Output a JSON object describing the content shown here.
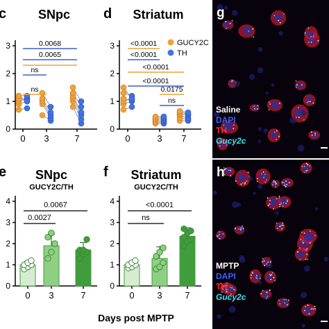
{
  "panels": {
    "c": "c",
    "d": "d",
    "e": "e",
    "f": "f",
    "g": "g",
    "h": "h"
  },
  "legend": {
    "gucy2c": "GUCY2C",
    "th": "TH"
  },
  "shared_xlabel": "Days post MPTP",
  "colors": {
    "gucy2c": "#f0a03c",
    "th": "#4472e0",
    "sig_orange": "#e8a33a",
    "sig_blue": "#3a5fc8",
    "bar_0": "#d6ecd0",
    "bar_3": "#8fcf84",
    "bar_7": "#3f9d3c",
    "dot_green": "#56b34d"
  },
  "micrographs": {
    "g": {
      "lines": [
        "Saline",
        "DAPI",
        "TH",
        "Gucy2c"
      ]
    },
    "h": {
      "lines": [
        "MPTP",
        "DAPI",
        "TH",
        "Gucy2c"
      ]
    }
  },
  "chart_data": [
    {
      "id": "c",
      "type": "scatter",
      "title": "SNpc",
      "subtitle": "",
      "x": [
        "0",
        "3",
        "7"
      ],
      "ylim": [
        0,
        3
      ],
      "yticks": [
        "0",
        "1",
        "2",
        "3"
      ],
      "series": [
        {
          "name": "GUCY2C",
          "values": [
            [
              0.7,
              0.9,
              1.0,
              1.1,
              1.2,
              1.2
            ],
            [
              0.5,
              0.9,
              1.0,
              1.1,
              1.3
            ],
            [
              0.8,
              1.0,
              1.1,
              1.2,
              1.3,
              1.5
            ]
          ]
        },
        {
          "name": "TH",
          "values": [
            [
              0.75,
              1.0,
              1.1,
              1.05,
              1.2,
              1.0
            ],
            [
              0.3,
              0.4,
              0.5,
              0.6,
              0.8
            ],
            [
              0.2,
              0.35,
              0.5,
              0.6,
              0.8,
              1.0
            ]
          ]
        }
      ],
      "significance": [
        {
          "from": 0,
          "to": 1,
          "y": 1.25,
          "label": "ns",
          "color": "orange"
        },
        {
          "from": 0,
          "to": 1,
          "y": 1.95,
          "label": "ns",
          "color": "blue"
        },
        {
          "from": 0,
          "to": 2,
          "y": 2.3,
          "label": "",
          "color": "orange"
        },
        {
          "from": 0,
          "to": 2,
          "y": 2.5,
          "label": "0.0065",
          "color": "blue"
        },
        {
          "from": 0,
          "to": 2,
          "y": 2.9,
          "label": "0.0068",
          "color": "blue"
        }
      ]
    },
    {
      "id": "d",
      "type": "scatter",
      "title": "Striatum",
      "subtitle": "",
      "x": [
        "0",
        "3",
        "7"
      ],
      "ylim": [
        0,
        3
      ],
      "yticks": [
        "0",
        "1",
        "2",
        "3"
      ],
      "series": [
        {
          "name": "GUCY2C",
          "values": [
            [
              0.7,
              0.9,
              1.0,
              1.1,
              1.3,
              1.5
            ],
            [
              0.2,
              0.25,
              0.3,
              0.35,
              0.4,
              0.45
            ],
            [
              0.3,
              0.4,
              0.5,
              0.55,
              0.6,
              0.65
            ]
          ]
        },
        {
          "name": "TH",
          "values": [
            [
              0.8,
              1.0,
              1.1,
              1.05,
              1.2,
              1.1
            ],
            [
              0.2,
              0.25,
              0.3,
              0.35,
              0.4,
              0.45
            ],
            [
              0.3,
              0.35,
              0.4,
              0.5,
              0.55,
              0.6
            ]
          ]
        }
      ],
      "significance": [
        {
          "from": 0,
          "to": 1,
          "y": 2.9,
          "label": "<0.0001",
          "color": "orange"
        },
        {
          "from": 0,
          "to": 1,
          "y": 2.5,
          "label": "<0.0001",
          "color": "blue"
        },
        {
          "from": 0,
          "to": 2,
          "y": 2.05,
          "label": "<0.0001",
          "color": "orange"
        },
        {
          "from": 0,
          "to": 2,
          "y": 1.55,
          "label": "<0.0001",
          "color": "blue"
        },
        {
          "from": 1,
          "to": 2,
          "y": 1.25,
          "label": "0.0175",
          "color": "orange"
        },
        {
          "from": 1,
          "to": 2,
          "y": 0.85,
          "label": "ns",
          "color": "blue"
        }
      ]
    },
    {
      "id": "e",
      "type": "bar",
      "title": "SNpc",
      "subtitle": "GUCY2C/TH",
      "categories": [
        "0",
        "3",
        "7"
      ],
      "values": [
        1.0,
        1.9,
        1.7
      ],
      "errors": [
        0.15,
        0.55,
        0.35
      ],
      "points": [
        [
          0.8,
          0.9,
          1.0,
          1.0,
          1.1,
          1.2
        ],
        [
          1.3,
          1.6,
          2.0,
          2.3,
          2.5
        ],
        [
          1.3,
          1.5,
          1.6,
          1.7,
          1.7,
          2.2
        ]
      ],
      "ylim": [
        0,
        4
      ],
      "yticks": [
        "0",
        "1",
        "2",
        "3",
        "4"
      ],
      "significance": [
        {
          "from": 0,
          "to": 1,
          "y": 2.95,
          "label": "0.0027"
        },
        {
          "from": 0,
          "to": 2,
          "y": 3.55,
          "label": "0.0067"
        }
      ]
    },
    {
      "id": "f",
      "type": "bar",
      "title": "Striatum",
      "subtitle": "GUCY2C/TH",
      "categories": [
        "0",
        "3",
        "7"
      ],
      "values": [
        1.0,
        1.3,
        2.35
      ],
      "errors": [
        0.12,
        0.55,
        0.4
      ],
      "points": [
        [
          0.85,
          0.9,
          1.0,
          1.0,
          1.1,
          1.2
        ],
        [
          0.8,
          0.9,
          1.1,
          1.4,
          1.6,
          1.8
        ],
        [
          1.9,
          2.1,
          2.2,
          2.3,
          2.5,
          2.6,
          2.7
        ]
      ],
      "ylim": [
        0,
        4
      ],
      "yticks": [
        "0",
        "1",
        "2",
        "3",
        "4"
      ],
      "significance": [
        {
          "from": 0,
          "to": 1,
          "y": 2.95,
          "label": "ns"
        },
        {
          "from": 0,
          "to": 2,
          "y": 3.55,
          "label": "<0.0001"
        }
      ]
    }
  ]
}
